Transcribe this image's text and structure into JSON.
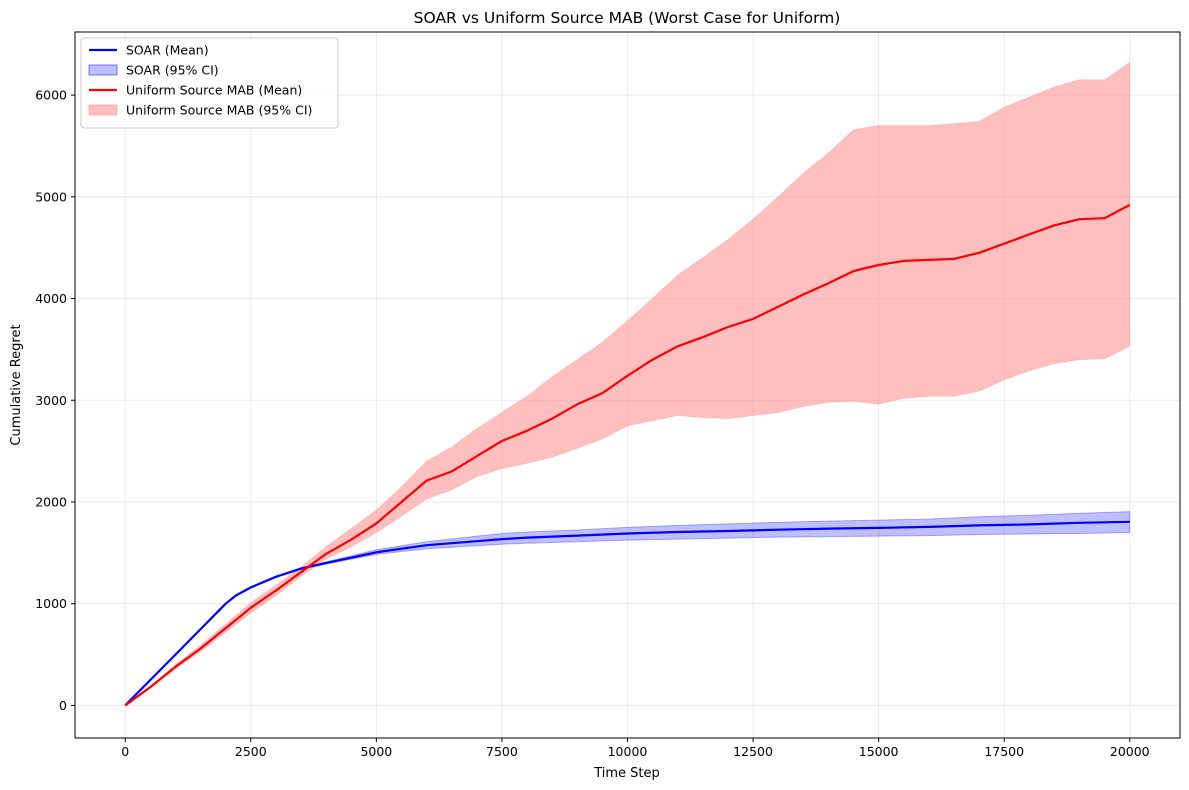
{
  "chart_data": {
    "type": "line",
    "title": "SOAR vs Uniform Source MAB (Worst Case for Uniform)",
    "xlabel": "Time Step",
    "ylabel": "Cumulative Regret",
    "xlim": [
      -1000,
      21000
    ],
    "ylim": [
      -320,
      6620
    ],
    "xticks": [
      0,
      2500,
      5000,
      7500,
      10000,
      12500,
      15000,
      17500,
      20000
    ],
    "yticks": [
      0,
      1000,
      2000,
      3000,
      4000,
      5000,
      6000
    ],
    "grid": true,
    "legend_position": "top-left",
    "legend": [
      "SOAR (Mean)",
      "SOAR (95% CI)",
      "Uniform Source MAB (Mean)",
      "Uniform Source MAB (95% CI)"
    ],
    "series": [
      {
        "name": "SOAR",
        "color": "#0000ff",
        "band_color": "#0000ff",
        "x": [
          0,
          500,
          1000,
          1500,
          2000,
          2200,
          2500,
          3000,
          3500,
          4000,
          5000,
          6000,
          7000,
          7500,
          8000,
          9000,
          10000,
          11000,
          12000,
          13000,
          14000,
          15000,
          16000,
          17000,
          18000,
          19000,
          20000
        ],
        "mean": [
          0,
          250,
          500,
          750,
          1000,
          1080,
          1160,
          1265,
          1345,
          1400,
          1505,
          1575,
          1615,
          1635,
          1650,
          1670,
          1690,
          1705,
          1715,
          1728,
          1738,
          1745,
          1755,
          1770,
          1780,
          1795,
          1805
        ],
        "lower": [
          0,
          250,
          500,
          750,
          1000,
          1080,
          1160,
          1262,
          1338,
          1390,
          1485,
          1540,
          1570,
          1585,
          1595,
          1610,
          1625,
          1635,
          1645,
          1655,
          1660,
          1665,
          1670,
          1680,
          1685,
          1690,
          1700
        ],
        "upper": [
          0,
          250,
          500,
          750,
          1000,
          1080,
          1160,
          1268,
          1352,
          1412,
          1530,
          1610,
          1665,
          1690,
          1705,
          1725,
          1750,
          1770,
          1785,
          1800,
          1812,
          1822,
          1832,
          1855,
          1870,
          1890,
          1905
        ]
      },
      {
        "name": "Uniform Source MAB",
        "color": "#ff0000",
        "band_color": "#ff8080",
        "x": [
          0,
          500,
          1000,
          1500,
          2000,
          2500,
          3000,
          3500,
          4000,
          4500,
          5000,
          5500,
          6000,
          6500,
          7000,
          7500,
          8000,
          8500,
          9000,
          9500,
          10000,
          10500,
          11000,
          11500,
          12000,
          12500,
          13000,
          13500,
          14000,
          14500,
          15000,
          15500,
          16000,
          16500,
          17000,
          17500,
          18000,
          18500,
          19000,
          19500,
          20000
        ],
        "mean": [
          0,
          180,
          380,
          560,
          760,
          960,
          1130,
          1310,
          1490,
          1630,
          1790,
          2000,
          2210,
          2300,
          2450,
          2600,
          2700,
          2820,
          2960,
          3070,
          3240,
          3400,
          3530,
          3620,
          3720,
          3800,
          3920,
          4040,
          4150,
          4270,
          4330,
          4370,
          4380,
          4390,
          4450,
          4540,
          4630,
          4720,
          4780,
          4790,
          4920
        ],
        "lower": [
          0,
          170,
          360,
          530,
          720,
          910,
          1080,
          1270,
          1440,
          1560,
          1700,
          1860,
          2030,
          2120,
          2250,
          2330,
          2380,
          2440,
          2530,
          2620,
          2750,
          2800,
          2850,
          2830,
          2820,
          2850,
          2880,
          2940,
          2980,
          2990,
          2960,
          3020,
          3040,
          3040,
          3090,
          3200,
          3290,
          3360,
          3400,
          3410,
          3530
        ],
        "upper": [
          0,
          190,
          400,
          590,
          800,
          1010,
          1180,
          1360,
          1560,
          1740,
          1920,
          2150,
          2400,
          2540,
          2720,
          2880,
          3040,
          3230,
          3400,
          3570,
          3780,
          4000,
          4230,
          4400,
          4580,
          4780,
          5000,
          5230,
          5430,
          5660,
          5700,
          5700,
          5700,
          5720,
          5740,
          5880,
          5980,
          6080,
          6150,
          6150,
          6320
        ]
      }
    ]
  }
}
